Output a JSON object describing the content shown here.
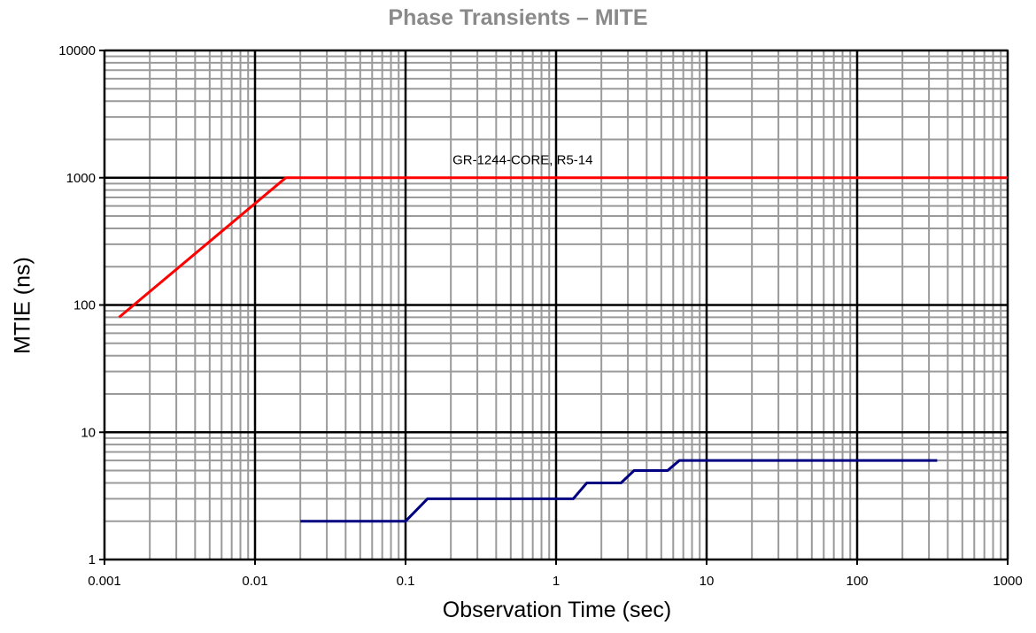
{
  "chart_data": {
    "type": "line",
    "title": "Phase Transients – MITE",
    "xlabel": "Observation Time (sec)",
    "ylabel": "MTIE (ns)",
    "x_scale": "log",
    "y_scale": "log",
    "xlim": [
      0.001,
      1000
    ],
    "ylim": [
      1,
      10000
    ],
    "x_ticks": [
      "0.001",
      "0.01",
      "0.1",
      "1",
      "10",
      "100",
      "1000"
    ],
    "y_ticks": [
      "1",
      "10",
      "100",
      "1000",
      "10000"
    ],
    "grid": true,
    "series": [
      {
        "name": "GR-1244-CORE, R5-14",
        "color": "#ff0000",
        "points": [
          [
            0.00125,
            80
          ],
          [
            0.016,
            1000
          ],
          [
            1000,
            1000
          ]
        ]
      },
      {
        "name": "",
        "color": "#000080",
        "points": [
          [
            0.02,
            2
          ],
          [
            0.1,
            2
          ],
          [
            0.14,
            3
          ],
          [
            1.3,
            3
          ],
          [
            1.6,
            4
          ],
          [
            2.7,
            4
          ],
          [
            3.3,
            5
          ],
          [
            5.5,
            5
          ],
          [
            6.6,
            6
          ],
          [
            340,
            6
          ]
        ]
      }
    ],
    "annotations": [
      {
        "text": "GR-1244-CORE, R5-14",
        "x": 0.6,
        "y": 1200
      }
    ]
  }
}
